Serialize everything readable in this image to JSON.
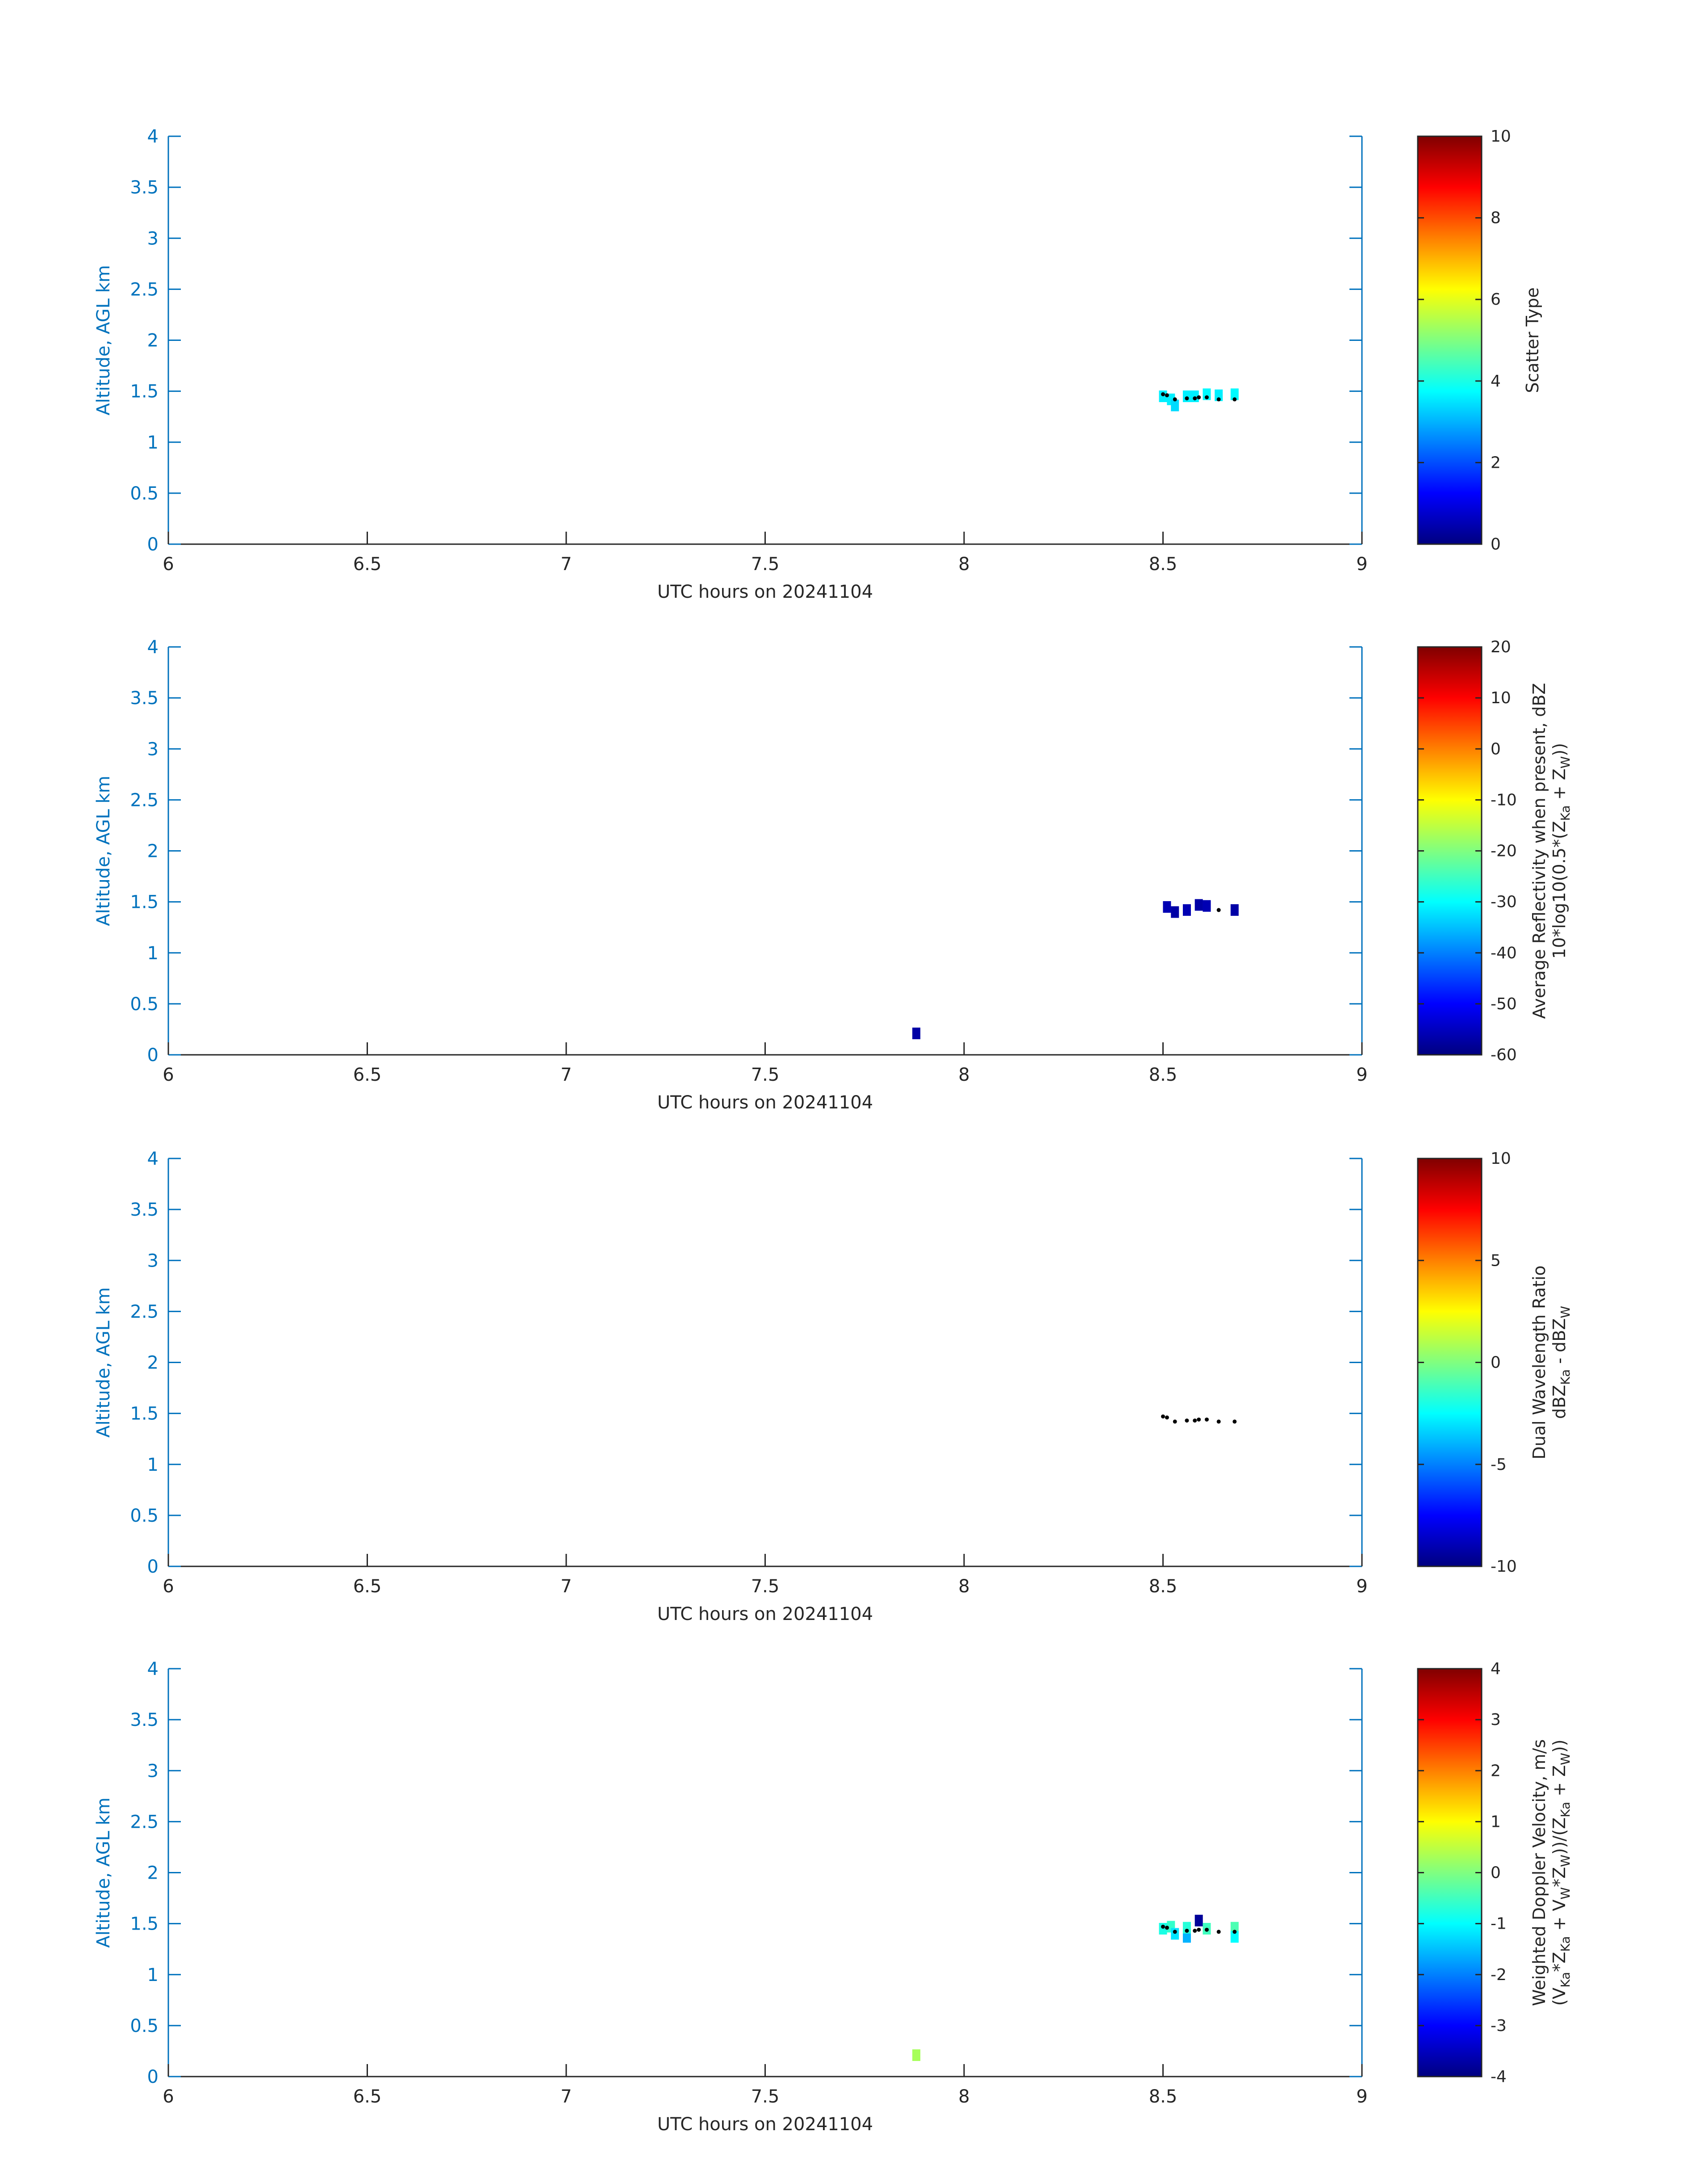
{
  "chart_data": [
    {
      "type": "scatter",
      "xlabel": "UTC hours on 20241104",
      "ylabel": "Altitude, AGL km",
      "xlim": [
        6,
        9
      ],
      "ylim": [
        0,
        4
      ],
      "xticks": [
        "6",
        "6.5",
        "7",
        "7.5",
        "8",
        "8.5",
        "9"
      ],
      "yticks": [
        "0",
        "0.5",
        "1",
        "1.5",
        "2",
        "2.5",
        "3",
        "3.5",
        "4"
      ],
      "colorbar": {
        "label_lines": [
          "Scatter Type"
        ],
        "clim": [
          0,
          10
        ],
        "ticks": [
          "0",
          "2",
          "4",
          "6",
          "8",
          "10"
        ]
      },
      "cells": [
        {
          "x": 8.5,
          "y": 1.45,
          "value": 3.6
        },
        {
          "x": 8.52,
          "y": 1.42,
          "value": 3.6
        },
        {
          "x": 8.53,
          "y": 1.36,
          "value": 3.4
        },
        {
          "x": 8.56,
          "y": 1.45,
          "value": 3.6
        },
        {
          "x": 8.58,
          "y": 1.45,
          "value": 3.6
        },
        {
          "x": 8.61,
          "y": 1.47,
          "value": 3.7
        },
        {
          "x": 8.64,
          "y": 1.46,
          "value": 3.6
        },
        {
          "x": 8.68,
          "y": 1.47,
          "value": 3.7
        }
      ],
      "markers": [
        {
          "x": 8.5,
          "y": 1.47
        },
        {
          "x": 8.51,
          "y": 1.46
        },
        {
          "x": 8.53,
          "y": 1.42
        },
        {
          "x": 8.56,
          "y": 1.43
        },
        {
          "x": 8.58,
          "y": 1.43
        },
        {
          "x": 8.59,
          "y": 1.44
        },
        {
          "x": 8.61,
          "y": 1.44
        },
        {
          "x": 8.64,
          "y": 1.42
        },
        {
          "x": 8.68,
          "y": 1.42
        }
      ]
    },
    {
      "type": "scatter",
      "xlabel": "UTC hours on 20241104",
      "ylabel": "Altitude, AGL km",
      "xlim": [
        6,
        9
      ],
      "ylim": [
        0,
        4
      ],
      "xticks": [
        "6",
        "6.5",
        "7",
        "7.5",
        "8",
        "8.5",
        "9"
      ],
      "yticks": [
        "0",
        "0.5",
        "1",
        "1.5",
        "2",
        "2.5",
        "3",
        "3.5",
        "4"
      ],
      "colorbar": {
        "label_lines": [
          "Average Reflectivity when present, dBZ",
          "10*log10(0.5*(Z",
          "Ka",
          " + Z",
          "W",
          "))"
        ],
        "clim": [
          -60,
          20
        ],
        "ticks": [
          "-60",
          "-50",
          "-40",
          "-30",
          "-20",
          "-10",
          "0",
          "10",
          "20"
        ]
      },
      "cells": [
        {
          "x": 8.51,
          "y": 1.45,
          "value": -56
        },
        {
          "x": 8.53,
          "y": 1.4,
          "value": -57
        },
        {
          "x": 8.56,
          "y": 1.42,
          "value": -56
        },
        {
          "x": 8.59,
          "y": 1.47,
          "value": -57
        },
        {
          "x": 8.61,
          "y": 1.46,
          "value": -56
        },
        {
          "x": 8.68,
          "y": 1.42,
          "value": -57
        },
        {
          "x": 7.88,
          "y": 0.21,
          "value": -57
        }
      ],
      "markers": [
        {
          "x": 8.64,
          "y": 1.42
        }
      ]
    },
    {
      "type": "scatter",
      "xlabel": "UTC hours on 20241104",
      "ylabel": "Altitude, AGL km",
      "xlim": [
        6,
        9
      ],
      "ylim": [
        0,
        4
      ],
      "xticks": [
        "6",
        "6.5",
        "7",
        "7.5",
        "8",
        "8.5",
        "9"
      ],
      "yticks": [
        "0",
        "0.5",
        "1",
        "1.5",
        "2",
        "2.5",
        "3",
        "3.5",
        "4"
      ],
      "colorbar": {
        "label_lines": [
          "Dual Wavelength Ratio",
          "dBZ",
          "Ka",
          " - dBZ",
          "W"
        ],
        "clim": [
          -10,
          10
        ],
        "ticks": [
          "-10",
          "-5",
          "0",
          "5",
          "10"
        ]
      },
      "cells": [],
      "markers": [
        {
          "x": 8.5,
          "y": 1.47
        },
        {
          "x": 8.51,
          "y": 1.46
        },
        {
          "x": 8.53,
          "y": 1.42
        },
        {
          "x": 8.56,
          "y": 1.43
        },
        {
          "x": 8.58,
          "y": 1.43
        },
        {
          "x": 8.59,
          "y": 1.44
        },
        {
          "x": 8.61,
          "y": 1.44
        },
        {
          "x": 8.64,
          "y": 1.42
        },
        {
          "x": 8.68,
          "y": 1.42
        }
      ]
    },
    {
      "type": "scatter",
      "xlabel": "UTC hours on 20241104",
      "ylabel": "Altitude, AGL km",
      "xlim": [
        6,
        9
      ],
      "ylim": [
        0,
        4
      ],
      "xticks": [
        "6",
        "6.5",
        "7",
        "7.5",
        "8",
        "8.5",
        "9"
      ],
      "yticks": [
        "0",
        "0.5",
        "1",
        "1.5",
        "2",
        "2.5",
        "3",
        "3.5",
        "4"
      ],
      "colorbar": {
        "label_lines": [
          "Weighted Doppler Velocity, m/s",
          "(V",
          "Ka",
          "*Z",
          "Ka",
          " + V",
          "W",
          "*Z",
          "W",
          "))/(Z",
          "Ka",
          " + Z",
          "W",
          "))"
        ],
        "clim": [
          -4,
          4
        ],
        "ticks": [
          "-4",
          "-3",
          "-2",
          "-1",
          "0",
          "1",
          "2",
          "3",
          "4"
        ]
      },
      "cells": [
        {
          "x": 8.5,
          "y": 1.45,
          "value": -0.8
        },
        {
          "x": 8.52,
          "y": 1.47,
          "value": -0.6
        },
        {
          "x": 8.53,
          "y": 1.4,
          "value": -1.2
        },
        {
          "x": 8.56,
          "y": 1.37,
          "value": -1.6
        },
        {
          "x": 8.56,
          "y": 1.46,
          "value": -0.7
        },
        {
          "x": 8.59,
          "y": 1.53,
          "value": -3.8
        },
        {
          "x": 8.61,
          "y": 1.45,
          "value": -0.5
        },
        {
          "x": 8.68,
          "y": 1.46,
          "value": -0.4
        },
        {
          "x": 8.68,
          "y": 1.37,
          "value": -1.0
        },
        {
          "x": 7.88,
          "y": 0.21,
          "value": 0.3
        }
      ],
      "markers": [
        {
          "x": 8.5,
          "y": 1.47
        },
        {
          "x": 8.51,
          "y": 1.46
        },
        {
          "x": 8.53,
          "y": 1.42
        },
        {
          "x": 8.56,
          "y": 1.43
        },
        {
          "x": 8.58,
          "y": 1.43
        },
        {
          "x": 8.59,
          "y": 1.44
        },
        {
          "x": 8.61,
          "y": 1.44
        },
        {
          "x": 8.64,
          "y": 1.42
        },
        {
          "x": 8.68,
          "y": 1.42
        }
      ]
    }
  ]
}
